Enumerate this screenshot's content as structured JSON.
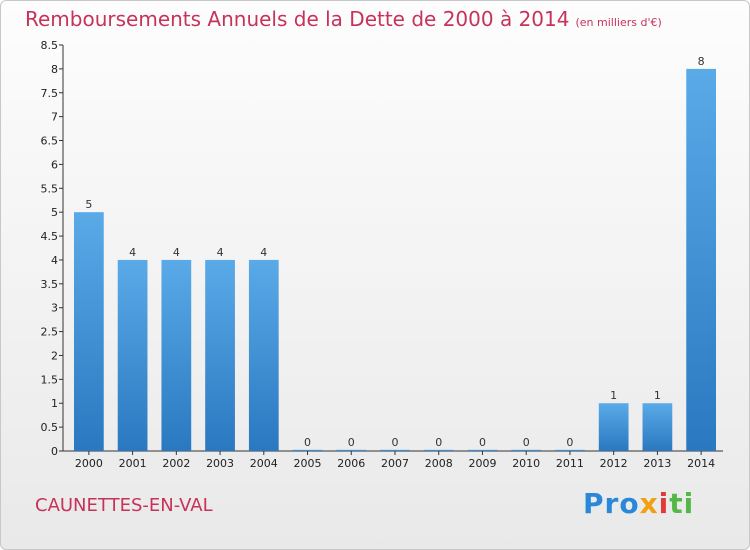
{
  "header": {
    "title": "Remboursements Annuels de la Dette de 2000 à 2014",
    "subtitle": "(en milliers d'€)"
  },
  "footer": {
    "commune": "CAUNETTES-EN-VAL",
    "logo": [
      "Pro",
      "x",
      "i",
      "ti"
    ]
  },
  "colors": {
    "bar_top": "#5aaae8",
    "bar_bottom": "#2a78c0",
    "title": "#c8325a"
  },
  "chart_data": {
    "type": "bar",
    "title": "Remboursements Annuels de la Dette de 2000 à 2014",
    "categories": [
      "2000",
      "2001",
      "2002",
      "2003",
      "2004",
      "2005",
      "2006",
      "2007",
      "2008",
      "2009",
      "2010",
      "2011",
      "2012",
      "2013",
      "2014"
    ],
    "values": [
      5,
      4,
      4,
      4,
      4,
      0,
      0,
      0,
      0,
      0,
      0,
      0,
      1,
      1,
      8
    ],
    "data_labels": [
      "5",
      "4",
      "4",
      "4",
      "4",
      "0",
      "0",
      "0",
      "0",
      "0",
      "0",
      "0",
      "1",
      "1",
      "8"
    ],
    "ylim": [
      0,
      8.5
    ],
    "yticks": [
      "0",
      "0.5",
      "1",
      "1.5",
      "2",
      "2.5",
      "3",
      "3.5",
      "4",
      "4.5",
      "5",
      "5.5",
      "6",
      "6.5",
      "7",
      "7.5",
      "8",
      "8.5"
    ],
    "grid": false,
    "xlabel": "",
    "ylabel": ""
  }
}
